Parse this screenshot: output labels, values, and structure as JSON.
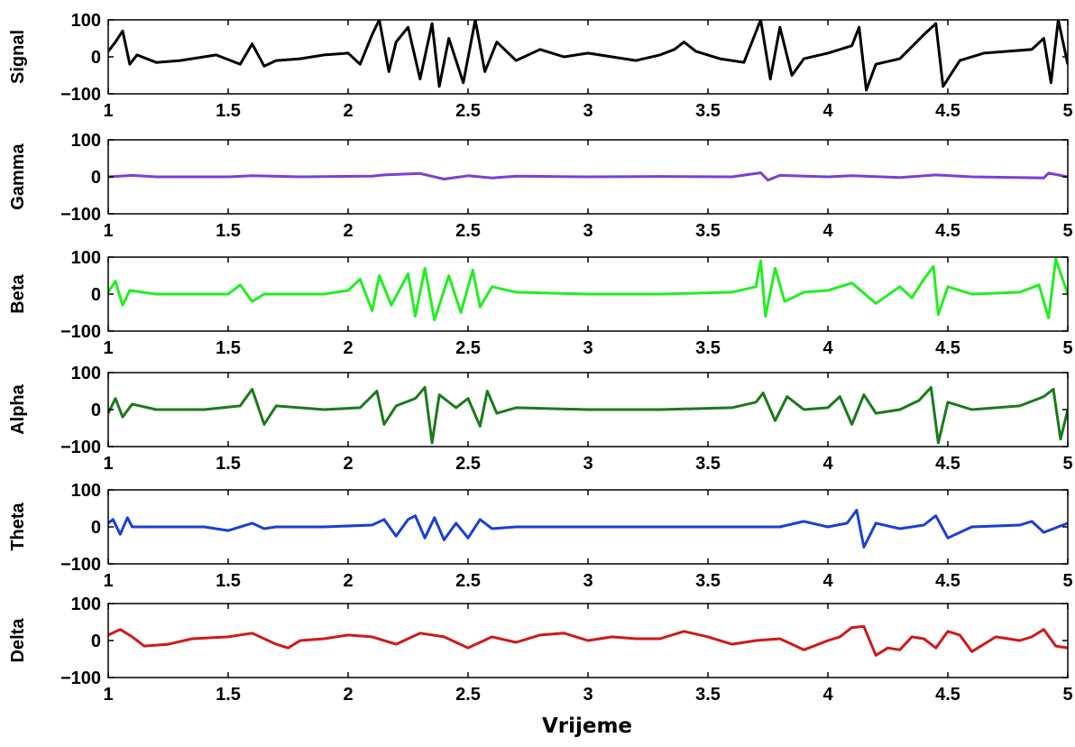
{
  "chart_data": [
    {
      "type": "line",
      "series": [
        {
          "name": "",
          "color": "#000000",
          "x": [
            1.0,
            1.03,
            1.06,
            1.09,
            1.12,
            1.2,
            1.3,
            1.45,
            1.55,
            1.6,
            1.65,
            1.7,
            1.8,
            1.9,
            2.0,
            2.05,
            2.1,
            2.13,
            2.17,
            2.2,
            2.25,
            2.3,
            2.35,
            2.38,
            2.42,
            2.48,
            2.53,
            2.57,
            2.62,
            2.7,
            2.8,
            2.9,
            3.0,
            3.1,
            3.2,
            3.3,
            3.36,
            3.4,
            3.45,
            3.55,
            3.65,
            3.72,
            3.76,
            3.8,
            3.85,
            3.9,
            4.0,
            4.1,
            4.13,
            4.16,
            4.2,
            4.3,
            4.4,
            4.45,
            4.48,
            4.55,
            4.65,
            4.75,
            4.85,
            4.9,
            4.93,
            4.96,
            5.0
          ],
          "y": [
            15,
            40,
            70,
            -20,
            5,
            -15,
            -10,
            5,
            -20,
            35,
            -25,
            -10,
            -5,
            5,
            10,
            -20,
            60,
            100,
            -40,
            40,
            80,
            -60,
            90,
            -80,
            50,
            -70,
            100,
            -40,
            40,
            -10,
            20,
            0,
            10,
            0,
            -10,
            5,
            20,
            40,
            15,
            -5,
            -15,
            100,
            -60,
            80,
            -50,
            -5,
            10,
            30,
            80,
            -90,
            -20,
            -5,
            60,
            90,
            -80,
            -10,
            10,
            15,
            20,
            50,
            -70,
            100,
            -20
          ]
        }
      ],
      "xlim": [
        1,
        5
      ],
      "ylim": [
        -100,
        100
      ],
      "xticks": [
        1,
        1.5,
        2,
        2.5,
        3,
        3.5,
        4,
        4.5,
        5
      ],
      "yticks": [
        -100,
        0,
        100
      ],
      "ylabel": "Signal",
      "xlabel": "",
      "grid": false
    },
    {
      "type": "line",
      "series": [
        {
          "name": "",
          "color": "#7b3fd6",
          "x": [
            1.0,
            1.1,
            1.2,
            1.5,
            1.6,
            1.8,
            2.1,
            2.15,
            2.3,
            2.4,
            2.5,
            2.6,
            2.7,
            3.0,
            3.3,
            3.6,
            3.72,
            3.75,
            3.8,
            4.0,
            4.1,
            4.3,
            4.45,
            4.6,
            4.9,
            4.92,
            5.0
          ],
          "y": [
            0,
            4,
            0,
            0,
            3,
            0,
            2,
            5,
            9,
            -6,
            3,
            -3,
            2,
            0,
            1,
            0,
            11,
            -9,
            4,
            0,
            3,
            -2,
            5,
            0,
            -3,
            10,
            0
          ]
        }
      ],
      "xlim": [
        1,
        5
      ],
      "ylim": [
        -100,
        100
      ],
      "xticks": [
        1,
        1.5,
        2,
        2.5,
        3,
        3.5,
        4,
        4.5,
        5
      ],
      "yticks": [
        -100,
        0,
        100
      ],
      "ylabel": "Gamma",
      "xlabel": "",
      "grid": false
    },
    {
      "type": "line",
      "series": [
        {
          "name": "",
          "color": "#22ee22",
          "x": [
            1.0,
            1.03,
            1.06,
            1.09,
            1.2,
            1.5,
            1.55,
            1.6,
            1.65,
            1.9,
            2.0,
            2.05,
            2.1,
            2.13,
            2.18,
            2.25,
            2.28,
            2.32,
            2.36,
            2.42,
            2.47,
            2.52,
            2.55,
            2.6,
            2.7,
            3.0,
            3.3,
            3.6,
            3.7,
            3.72,
            3.74,
            3.78,
            3.82,
            3.9,
            4.0,
            4.1,
            4.2,
            4.3,
            4.35,
            4.4,
            4.44,
            4.46,
            4.5,
            4.6,
            4.8,
            4.88,
            4.92,
            4.95,
            5.0
          ],
          "y": [
            5,
            35,
            -30,
            10,
            0,
            0,
            25,
            -20,
            0,
            0,
            10,
            40,
            -45,
            50,
            -30,
            55,
            -60,
            70,
            -70,
            50,
            -50,
            65,
            -35,
            20,
            5,
            0,
            0,
            5,
            20,
            90,
            -60,
            70,
            -20,
            5,
            10,
            30,
            -25,
            20,
            -10,
            40,
            75,
            -55,
            20,
            0,
            5,
            25,
            -65,
            95,
            0
          ]
        }
      ],
      "xlim": [
        1,
        5
      ],
      "ylim": [
        -100,
        100
      ],
      "xticks": [
        1,
        1.5,
        2,
        2.5,
        3,
        3.5,
        4,
        4.5,
        5
      ],
      "yticks": [
        -100,
        0,
        100
      ],
      "ylabel": "Beta",
      "xlabel": "",
      "grid": false
    },
    {
      "type": "line",
      "series": [
        {
          "name": "",
          "color": "#1b7a1b",
          "x": [
            1.0,
            1.03,
            1.06,
            1.1,
            1.2,
            1.4,
            1.55,
            1.6,
            1.65,
            1.7,
            1.9,
            2.05,
            2.12,
            2.15,
            2.2,
            2.28,
            2.32,
            2.35,
            2.38,
            2.45,
            2.5,
            2.55,
            2.58,
            2.62,
            2.7,
            3.0,
            3.3,
            3.6,
            3.7,
            3.73,
            3.78,
            3.83,
            3.9,
            4.0,
            4.05,
            4.1,
            4.15,
            4.2,
            4.3,
            4.38,
            4.43,
            4.46,
            4.5,
            4.6,
            4.8,
            4.9,
            4.94,
            4.97,
            5.0
          ],
          "y": [
            -10,
            30,
            -20,
            15,
            0,
            0,
            10,
            55,
            -40,
            10,
            0,
            5,
            50,
            -40,
            10,
            30,
            60,
            -90,
            40,
            5,
            30,
            -45,
            50,
            -10,
            5,
            0,
            0,
            5,
            20,
            45,
            -30,
            35,
            0,
            5,
            35,
            -40,
            40,
            -10,
            0,
            25,
            60,
            -90,
            20,
            0,
            10,
            35,
            55,
            -80,
            0
          ]
        }
      ],
      "xlim": [
        1,
        5
      ],
      "ylim": [
        -100,
        100
      ],
      "xticks": [
        1,
        1.5,
        2,
        2.5,
        3,
        3.5,
        4,
        4.5,
        5
      ],
      "yticks": [
        -100,
        0,
        100
      ],
      "ylabel": "Alpha",
      "xlabel": "",
      "grid": false
    },
    {
      "type": "line",
      "series": [
        {
          "name": "",
          "color": "#1a3fd6",
          "x": [
            1.0,
            1.02,
            1.05,
            1.08,
            1.1,
            1.2,
            1.4,
            1.5,
            1.6,
            1.65,
            1.7,
            1.9,
            2.1,
            2.15,
            2.2,
            2.25,
            2.28,
            2.32,
            2.36,
            2.4,
            2.45,
            2.5,
            2.55,
            2.6,
            2.7,
            3.0,
            3.3,
            3.6,
            3.8,
            3.9,
            4.0,
            4.08,
            4.12,
            4.15,
            4.2,
            4.3,
            4.4,
            4.45,
            4.5,
            4.6,
            4.8,
            4.85,
            4.9,
            5.0
          ],
          "y": [
            10,
            20,
            -20,
            25,
            0,
            0,
            0,
            -10,
            10,
            -5,
            0,
            0,
            5,
            20,
            -25,
            20,
            30,
            -30,
            25,
            -35,
            10,
            -30,
            20,
            -5,
            0,
            0,
            0,
            0,
            0,
            15,
            0,
            10,
            45,
            -55,
            10,
            -5,
            5,
            30,
            -30,
            0,
            5,
            15,
            -15,
            10
          ]
        }
      ],
      "xlim": [
        1,
        5
      ],
      "ylim": [
        -100,
        100
      ],
      "xticks": [
        1,
        1.5,
        2,
        2.5,
        3,
        3.5,
        4,
        4.5,
        5
      ],
      "yticks": [
        -100,
        0,
        100
      ],
      "ylabel": "Theta",
      "xlabel": "",
      "grid": false
    },
    {
      "type": "line",
      "series": [
        {
          "name": "",
          "color": "#d01818",
          "x": [
            1.0,
            1.05,
            1.1,
            1.15,
            1.25,
            1.35,
            1.5,
            1.6,
            1.7,
            1.75,
            1.8,
            1.9,
            2.0,
            2.1,
            2.2,
            2.3,
            2.4,
            2.5,
            2.6,
            2.7,
            2.8,
            2.9,
            3.0,
            3.1,
            3.2,
            3.3,
            3.4,
            3.5,
            3.6,
            3.7,
            3.8,
            3.9,
            4.0,
            4.05,
            4.1,
            4.15,
            4.2,
            4.25,
            4.3,
            4.35,
            4.4,
            4.45,
            4.5,
            4.55,
            4.6,
            4.7,
            4.8,
            4.85,
            4.9,
            4.95,
            5.0
          ],
          "y": [
            15,
            30,
            10,
            -15,
            -10,
            5,
            10,
            20,
            -10,
            -20,
            0,
            5,
            15,
            10,
            -10,
            20,
            10,
            -20,
            10,
            -5,
            15,
            20,
            0,
            10,
            5,
            5,
            25,
            10,
            -10,
            0,
            5,
            -25,
            0,
            10,
            35,
            38,
            -40,
            -20,
            -25,
            10,
            5,
            -20,
            25,
            15,
            -30,
            10,
            0,
            10,
            30,
            -15,
            -20
          ]
        }
      ],
      "xlim": [
        1,
        5
      ],
      "ylim": [
        -100,
        100
      ],
      "xticks": [
        1,
        1.5,
        2,
        2.5,
        3,
        3.5,
        4,
        4.5,
        5
      ],
      "yticks": [
        -100,
        0,
        100
      ],
      "ylabel": "Delta",
      "xlabel": "Vrijeme",
      "grid": false
    }
  ]
}
